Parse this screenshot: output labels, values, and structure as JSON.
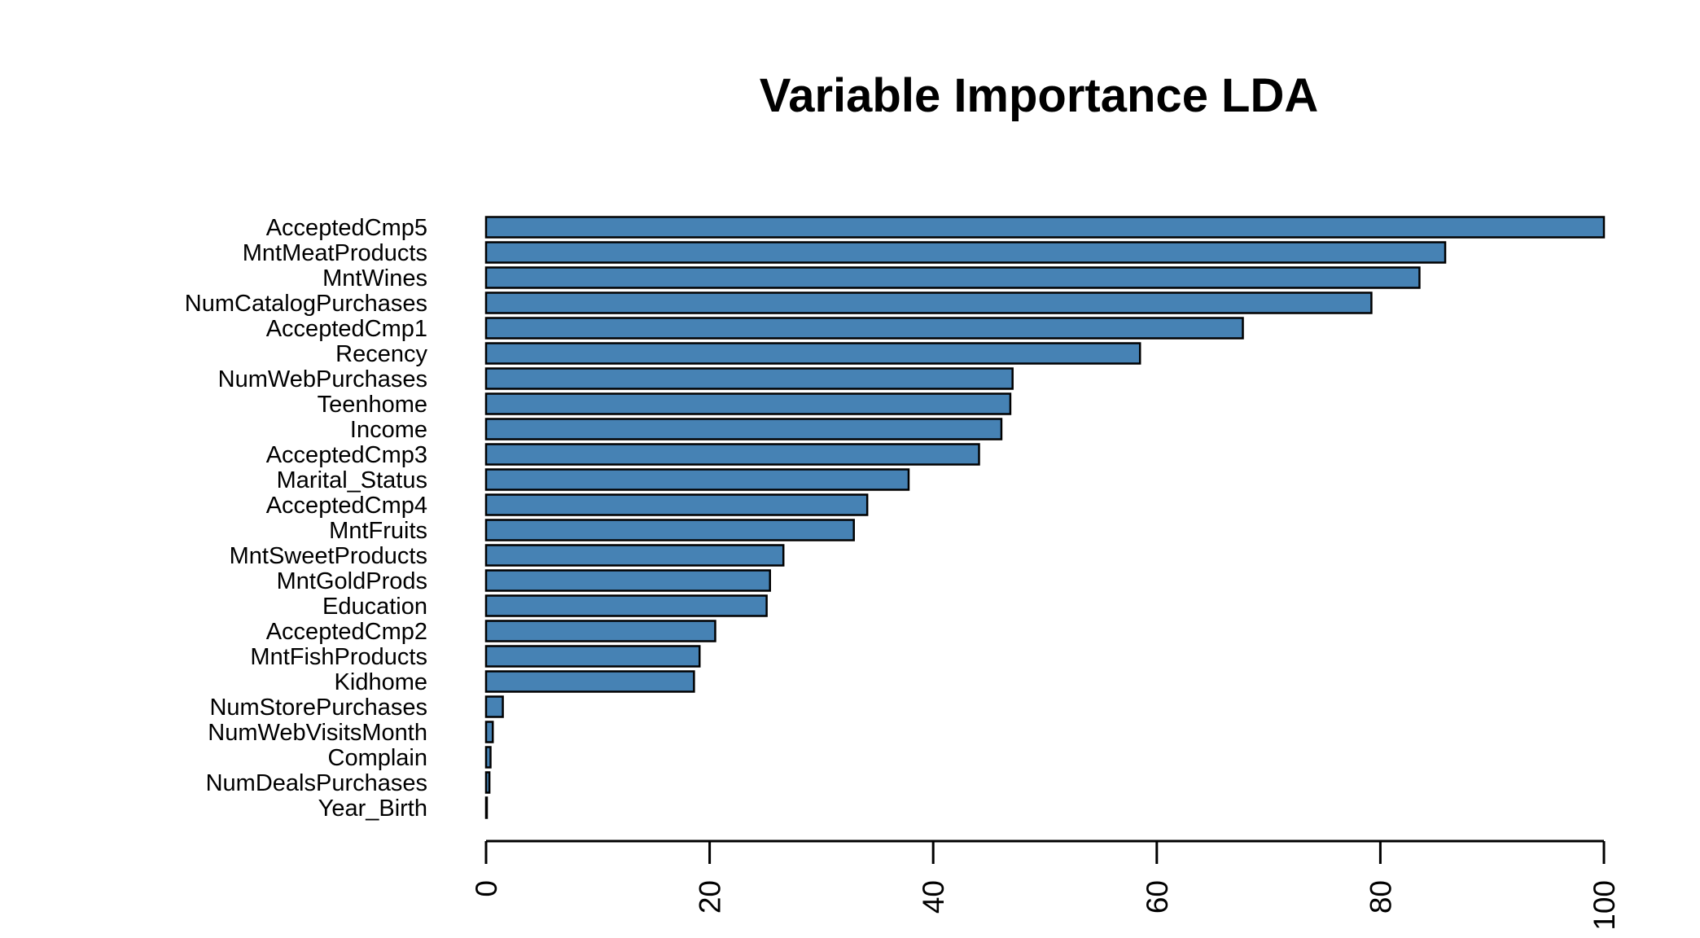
{
  "chart_data": {
    "type": "bar",
    "orientation": "horizontal",
    "title": "Variable Importance LDA",
    "xlabel": "",
    "ylabel": "",
    "xlim": [
      0,
      100
    ],
    "x_ticks": [
      0,
      20,
      40,
      60,
      80,
      100
    ],
    "bar_color": "#4682B4",
    "grid": false,
    "categories": [
      "AcceptedCmp5",
      "MntMeatProducts",
      "MntWines",
      "NumCatalogPurchases",
      "AcceptedCmp1",
      "Recency",
      "NumWebPurchases",
      "Teenhome",
      "Income",
      "AcceptedCmp3",
      "Marital_Status",
      "AcceptedCmp4",
      "MntFruits",
      "MntSweetProducts",
      "MntGoldProds",
      "Education",
      "AcceptedCmp2",
      "MntFishProducts",
      "Kidhome",
      "NumStorePurchases",
      "NumWebVisitsMonth",
      "Complain",
      "NumDealsPurchases",
      "Year_Birth"
    ],
    "values": [
      100,
      85.8,
      83.5,
      79.2,
      67.7,
      58.5,
      47.1,
      46.9,
      46.1,
      44.1,
      37.8,
      34.1,
      32.9,
      26.6,
      25.4,
      25.1,
      20.5,
      19.1,
      18.6,
      1.5,
      0.6,
      0.4,
      0.3,
      0.05
    ]
  }
}
